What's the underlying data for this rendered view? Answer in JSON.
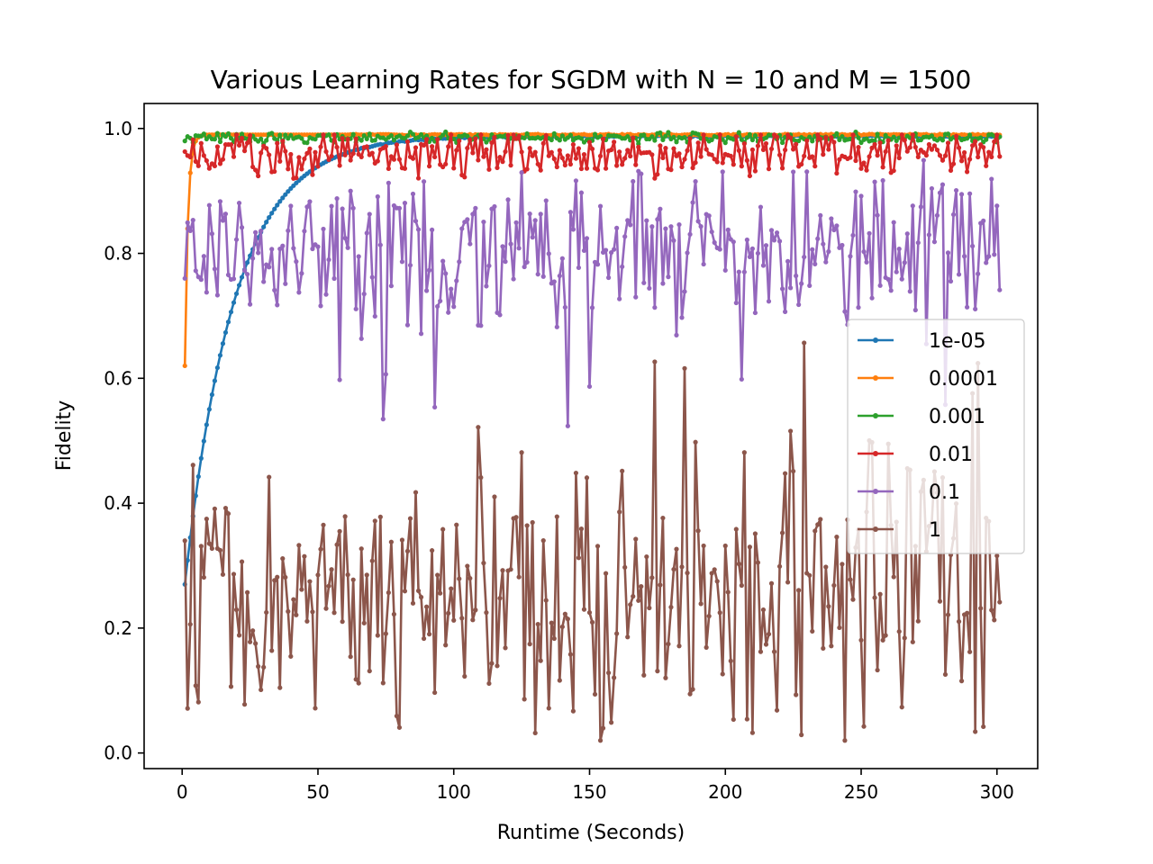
{
  "chart_data": {
    "type": "line",
    "title": "Various Learning Rates for SGDM with N = 10 and M = 1500",
    "xlabel": "Runtime (Seconds)",
    "ylabel": "Fidelity",
    "xlim": [
      -14,
      315
    ],
    "ylim": [
      -0.025,
      1.04
    ],
    "x_ticks": [
      "0",
      "50",
      "100",
      "150",
      "200",
      "250",
      "300"
    ],
    "y_ticks": [
      "0.0",
      "0.2",
      "0.4",
      "0.6",
      "0.8",
      "1.0"
    ],
    "x_tick_values": [
      0,
      50,
      100,
      150,
      200,
      250,
      300
    ],
    "y_tick_values": [
      0.0,
      0.2,
      0.4,
      0.6,
      0.8,
      1.0
    ],
    "legend_position": "center-right",
    "grid": false,
    "x_start": 1,
    "x_end": 301,
    "series": [
      {
        "name": "1e-05",
        "color": "#1f77b4",
        "kind": "saturating",
        "start": 0.27,
        "end": 0.988,
        "rate_per_second": 0.055
      },
      {
        "name": "0.0001",
        "color": "#ff7f0e",
        "kind": "saturating",
        "start": 0.62,
        "end": 0.99,
        "rate_per_second": 0.9
      },
      {
        "name": "0.001",
        "color": "#2ca02c",
        "kind": "noisy",
        "mean": 0.985,
        "spread": 0.004,
        "first": 0.98
      },
      {
        "name": "0.01",
        "color": "#d62728",
        "kind": "noisy",
        "mean": 0.962,
        "spread": 0.018,
        "min": 0.92,
        "max": 0.99,
        "first": 0.963
      },
      {
        "name": "0.1",
        "color": "#9467bd",
        "kind": "noisy",
        "mean": 0.8,
        "spread": 0.065,
        "min": 0.49,
        "max": 0.96,
        "first": 0.76
      },
      {
        "name": "1",
        "color": "#8c564b",
        "kind": "noisy",
        "mean": 0.26,
        "spread": 0.11,
        "min": 0.02,
        "max": 0.69,
        "first": 0.34
      }
    ]
  }
}
